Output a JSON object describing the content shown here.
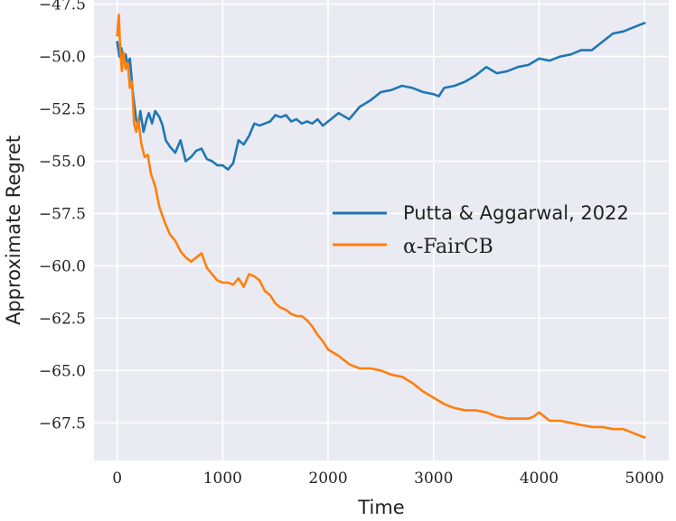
{
  "chart_data": {
    "type": "line",
    "title": "",
    "xlabel": "Time",
    "ylabel": "Approximate Regret",
    "xlim": [
      -220,
      5230
    ],
    "ylim": [
      -69.3,
      -47.3
    ],
    "xticks": [
      0,
      1000,
      2000,
      3000,
      4000,
      5000
    ],
    "xtick_labels": [
      "0",
      "1000",
      "2000",
      "3000",
      "4000",
      "5000"
    ],
    "yticks": [
      -47.5,
      -50.0,
      -52.5,
      -55.0,
      -57.5,
      -60.0,
      -62.5,
      -65.0,
      -67.5
    ],
    "ytick_labels": [
      "−47.5",
      "−50.0",
      "−52.5",
      "−55.0",
      "−57.5",
      "−60.0",
      "−62.5",
      "−65.0",
      "−67.5"
    ],
    "grid": true,
    "background": "#eaeaf2",
    "legend_position": "center-right",
    "series": [
      {
        "name": "Putta & Aggarwal, 2022",
        "color": "#1f77b4",
        "x": [
          0,
          20,
          40,
          60,
          80,
          100,
          120,
          150,
          180,
          200,
          220,
          250,
          280,
          300,
          330,
          360,
          400,
          430,
          460,
          500,
          550,
          600,
          650,
          700,
          750,
          800,
          850,
          900,
          950,
          1000,
          1050,
          1100,
          1150,
          1200,
          1250,
          1300,
          1350,
          1400,
          1450,
          1500,
          1550,
          1600,
          1650,
          1700,
          1750,
          1800,
          1850,
          1900,
          1950,
          2000,
          2100,
          2200,
          2300,
          2400,
          2500,
          2600,
          2700,
          2800,
          2900,
          3000,
          3050,
          3100,
          3200,
          3300,
          3400,
          3500,
          3600,
          3700,
          3800,
          3900,
          4000,
          4100,
          4200,
          4300,
          4400,
          4500,
          4600,
          4700,
          4800,
          4900,
          5000
        ],
        "y": [
          -49.3,
          -50.0,
          -49.6,
          -50.3,
          -49.9,
          -50.4,
          -50.1,
          -51.8,
          -53.0,
          -53.4,
          -52.6,
          -53.6,
          -53.0,
          -52.7,
          -53.2,
          -52.6,
          -52.9,
          -53.3,
          -54.0,
          -54.3,
          -54.6,
          -54.0,
          -55.0,
          -54.8,
          -54.5,
          -54.4,
          -54.9,
          -55.0,
          -55.2,
          -55.2,
          -55.4,
          -55.1,
          -54.0,
          -54.2,
          -53.8,
          -53.2,
          -53.3,
          -53.2,
          -53.1,
          -52.8,
          -52.9,
          -52.8,
          -53.1,
          -53.0,
          -53.2,
          -53.1,
          -53.2,
          -53.0,
          -53.3,
          -53.1,
          -52.7,
          -53.0,
          -52.4,
          -52.1,
          -51.7,
          -51.6,
          -51.4,
          -51.5,
          -51.7,
          -51.8,
          -51.9,
          -51.5,
          -51.4,
          -51.2,
          -50.9,
          -50.5,
          -50.8,
          -50.7,
          -50.5,
          -50.4,
          -50.1,
          -50.2,
          -50.0,
          -49.9,
          -49.7,
          -49.7,
          -49.3,
          -48.9,
          -48.8,
          -48.6,
          -48.4
        ]
      },
      {
        "name": "α-FairCB",
        "color": "#ff7f0e",
        "x": [
          0,
          15,
          30,
          45,
          60,
          80,
          100,
          120,
          140,
          160,
          180,
          200,
          230,
          260,
          290,
          320,
          360,
          400,
          450,
          500,
          550,
          600,
          650,
          700,
          750,
          800,
          850,
          900,
          950,
          1000,
          1050,
          1100,
          1150,
          1200,
          1250,
          1300,
          1350,
          1400,
          1450,
          1500,
          1550,
          1600,
          1650,
          1700,
          1750,
          1800,
          1850,
          1900,
          1950,
          2000,
          2100,
          2200,
          2300,
          2400,
          2500,
          2600,
          2700,
          2800,
          2900,
          3000,
          3100,
          3200,
          3300,
          3400,
          3500,
          3600,
          3700,
          3800,
          3900,
          3950,
          4000,
          4050,
          4100,
          4200,
          4300,
          4400,
          4500,
          4600,
          4700,
          4800,
          4900,
          5000
        ],
        "y": [
          -49.0,
          -48.0,
          -49.8,
          -50.7,
          -49.8,
          -50.6,
          -50.3,
          -51.5,
          -51.2,
          -53.2,
          -53.6,
          -53.0,
          -54.2,
          -54.8,
          -54.7,
          -55.6,
          -56.2,
          -57.2,
          -57.9,
          -58.5,
          -58.8,
          -59.3,
          -59.6,
          -59.8,
          -59.6,
          -59.4,
          -60.1,
          -60.4,
          -60.7,
          -60.8,
          -60.8,
          -60.9,
          -60.6,
          -61.0,
          -60.4,
          -60.5,
          -60.7,
          -61.2,
          -61.4,
          -61.8,
          -62.0,
          -62.1,
          -62.3,
          -62.4,
          -62.4,
          -62.6,
          -62.9,
          -63.3,
          -63.6,
          -64.0,
          -64.3,
          -64.7,
          -64.9,
          -64.9,
          -65.0,
          -65.2,
          -65.3,
          -65.6,
          -66.0,
          -66.3,
          -66.6,
          -66.8,
          -66.9,
          -66.9,
          -67.0,
          -67.2,
          -67.3,
          -67.3,
          -67.3,
          -67.2,
          -67.0,
          -67.2,
          -67.4,
          -67.4,
          -67.5,
          -67.6,
          -67.7,
          -67.7,
          -67.8,
          -67.8,
          -68.0,
          -68.2
        ]
      }
    ]
  }
}
